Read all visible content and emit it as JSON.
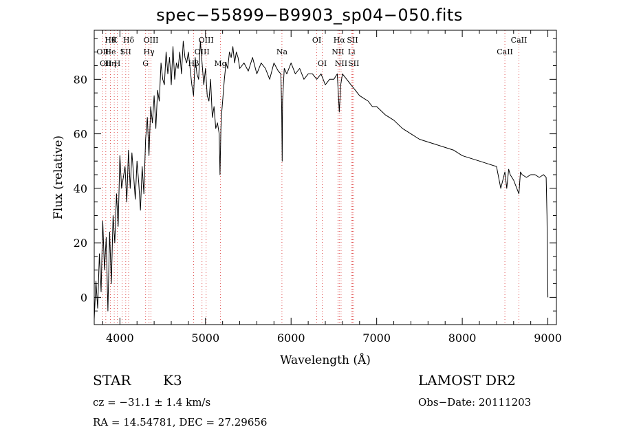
{
  "chart_data": {
    "type": "line",
    "title": "spec−55899−B9903_sp04−050.fits",
    "xlabel": "Wavelength (Å)",
    "ylabel": "Flux (relative)",
    "xlim": [
      3700,
      9100
    ],
    "ylim": [
      -10,
      98
    ],
    "xticks": [
      4000,
      5000,
      6000,
      7000,
      8000,
      9000
    ],
    "yticks": [
      0,
      20,
      40,
      60,
      80
    ],
    "grid": false,
    "line_color": "#000000",
    "marker_color": "#e05050",
    "series": [
      {
        "x": [
          3700,
          3720,
          3740,
          3760,
          3780,
          3800,
          3820,
          3840,
          3860,
          3880,
          3900,
          3920,
          3940,
          3960,
          3980,
          4000,
          4020,
          4040,
          4060,
          4080,
          4100,
          4120,
          4140,
          4160,
          4180,
          4200,
          4220,
          4240,
          4260,
          4280,
          4300,
          4320,
          4340,
          4360,
          4380,
          4400,
          4420,
          4440,
          4460,
          4480,
          4500,
          4520,
          4540,
          4560,
          4580,
          4600,
          4620,
          4640,
          4660,
          4680,
          4700,
          4720,
          4740,
          4760,
          4780,
          4800,
          4820,
          4840,
          4860,
          4880,
          4900,
          4920,
          4940,
          4960,
          4980,
          5000,
          5020,
          5040,
          5060,
          5080,
          5100,
          5120,
          5140,
          5160,
          5170,
          5180,
          5190,
          5200,
          5220,
          5240,
          5260,
          5280,
          5300,
          5320,
          5340,
          5360,
          5380,
          5400,
          5450,
          5500,
          5550,
          5600,
          5650,
          5700,
          5750,
          5800,
          5850,
          5880,
          5890,
          5896,
          5900,
          5920,
          5950,
          6000,
          6050,
          6100,
          6150,
          6200,
          6250,
          6300,
          6350,
          6400,
          6450,
          6500,
          6540,
          6563,
          6580,
          6600,
          6650,
          6700,
          6750,
          6800,
          6850,
          6900,
          6950,
          7000,
          7100,
          7200,
          7300,
          7400,
          7500,
          7600,
          7700,
          7800,
          7900,
          8000,
          8100,
          8200,
          8300,
          8400,
          8450,
          8498,
          8520,
          8542,
          8560,
          8600,
          8662,
          8680,
          8700,
          8750,
          8800,
          8850,
          8900,
          8950,
          8980,
          8990,
          9000
        ],
        "values": [
          -8,
          6,
          -4,
          16,
          2,
          28,
          10,
          22,
          -5,
          24,
          5,
          30,
          20,
          38,
          26,
          52,
          40,
          44,
          48,
          35,
          54,
          40,
          53,
          45,
          36,
          50,
          42,
          32,
          48,
          38,
          58,
          66,
          52,
          70,
          64,
          74,
          62,
          76,
          72,
          86,
          80,
          78,
          90,
          82,
          88,
          78,
          92,
          80,
          86,
          84,
          90,
          82,
          94,
          88,
          86,
          90,
          84,
          78,
          74,
          88,
          82,
          80,
          94,
          86,
          78,
          84,
          74,
          72,
          80,
          66,
          70,
          62,
          64,
          60,
          45,
          62,
          68,
          72,
          80,
          86,
          84,
          90,
          88,
          92,
          86,
          90,
          88,
          84,
          86,
          83,
          88,
          82,
          86,
          84,
          80,
          86,
          83,
          82,
          70,
          50,
          72,
          84,
          82,
          86,
          82,
          84,
          80,
          82,
          82,
          80,
          82,
          78,
          80,
          80,
          82,
          68,
          78,
          82,
          80,
          78,
          76,
          74,
          73,
          72,
          70,
          70,
          67,
          65,
          62,
          60,
          58,
          57,
          56,
          55,
          54,
          52,
          51,
          50,
          49,
          48,
          40,
          46,
          40,
          47,
          45,
          43,
          38,
          46,
          45,
          44,
          45,
          45,
          44,
          45,
          44,
          30,
          0
        ]
      }
    ],
    "line_markers": [
      {
        "wavelength": 3798,
        "label": "OII",
        "row": 1
      },
      {
        "wavelength": 3835,
        "label": "OII",
        "row": 2
      },
      {
        "wavelength": 3889,
        "label": "Hθ",
        "row": 0
      },
      {
        "wavelength": 3889,
        "label": "He",
        "row": 1
      },
      {
        "wavelength": 3889,
        "label": "Hη",
        "row": 2
      },
      {
        "wavelength": 3934,
        "label": "K",
        "row": 0
      },
      {
        "wavelength": 3970,
        "label": "H",
        "row": 2
      },
      {
        "wavelength": 4026,
        "label": "I",
        "row": 1
      },
      {
        "wavelength": 4068,
        "label": "SII",
        "row": 1
      },
      {
        "wavelength": 4102,
        "label": "Hδ",
        "row": 0
      },
      {
        "wavelength": 4300,
        "label": "G",
        "row": 2
      },
      {
        "wavelength": 4340,
        "label": "Hγ",
        "row": 1
      },
      {
        "wavelength": 4363,
        "label": "OIII",
        "row": 0
      },
      {
        "wavelength": 4861,
        "label": "Hβ",
        "row": 2
      },
      {
        "wavelength": 4959,
        "label": "OIII",
        "row": 1
      },
      {
        "wavelength": 5007,
        "label": "OIII",
        "row": 0
      },
      {
        "wavelength": 5175,
        "label": "Mg",
        "row": 2
      },
      {
        "wavelength": 5893,
        "label": "Na",
        "row": 1
      },
      {
        "wavelength": 6300,
        "label": "OI",
        "row": 0
      },
      {
        "wavelength": 6364,
        "label": "OI",
        "row": 2
      },
      {
        "wavelength": 6548,
        "label": "NII",
        "row": 1
      },
      {
        "wavelength": 6563,
        "label": "Hα",
        "row": 0
      },
      {
        "wavelength": 6584,
        "label": "NII",
        "row": 2
      },
      {
        "wavelength": 6707,
        "label": "Li",
        "row": 1
      },
      {
        "wavelength": 6717,
        "label": "SII",
        "row": 0
      },
      {
        "wavelength": 6731,
        "label": "SII",
        "row": 2
      },
      {
        "wavelength": 8498,
        "label": "CaII",
        "row": 1
      },
      {
        "wavelength": 8662,
        "label": "CaII",
        "row": 0
      }
    ]
  },
  "info": {
    "object_class": "STAR",
    "subclass": "K3",
    "survey": "LAMOST DR2",
    "redshift": "cz = −31.1 ± 1.4 km/s",
    "obs_date": "Obs−Date: 20111203",
    "coords": "RA =  14.54781, DEC =  27.29656"
  }
}
